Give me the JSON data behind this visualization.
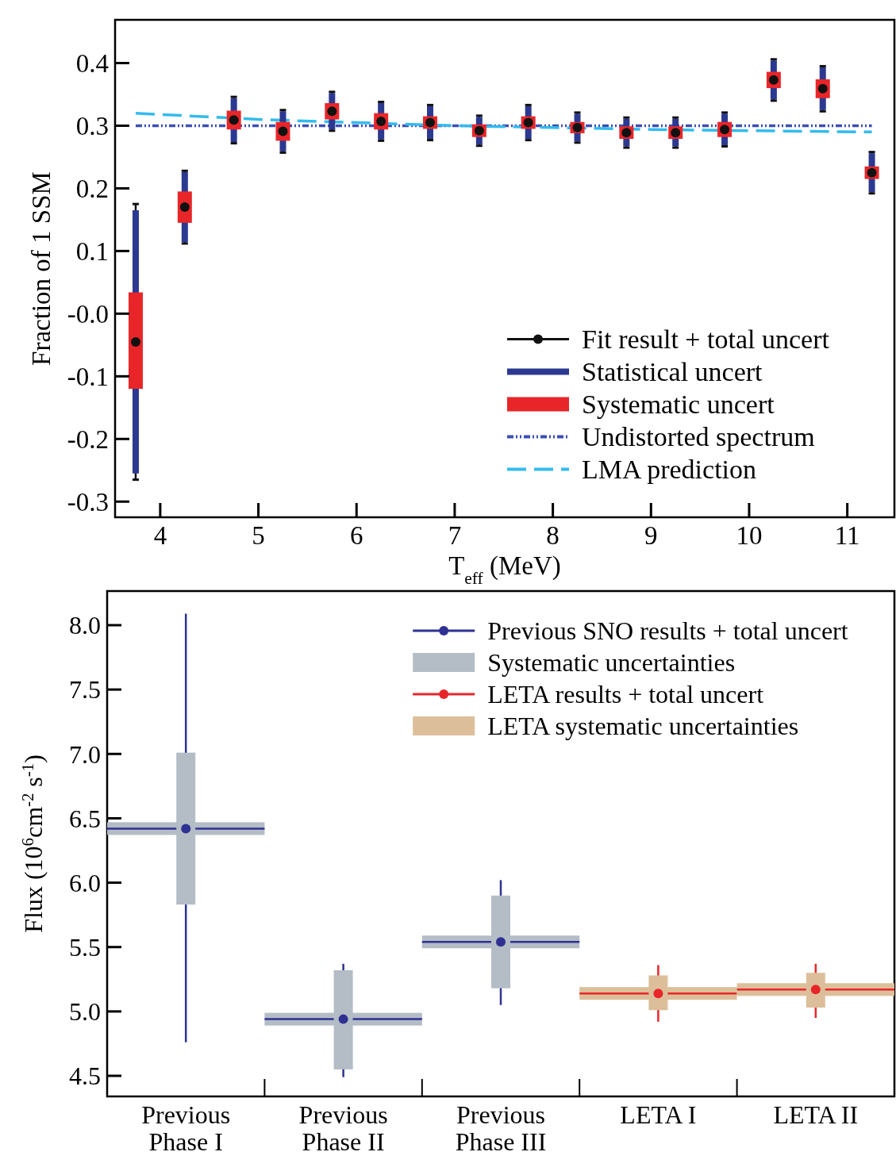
{
  "chart_data": [
    {
      "type": "scatter",
      "xlabel": "T$_{eff}$ (MeV)",
      "ylabel": "Fraction of 1 SSM",
      "xlim": [
        3.54,
        11.48
      ],
      "ylim": [
        -0.325,
        0.469
      ],
      "xticks": [
        4,
        5,
        6,
        7,
        8,
        9,
        10,
        11
      ],
      "yticks": [
        {
          "value": -0.3,
          "label": "-0.3"
        },
        {
          "value": -0.2,
          "label": "-0.2"
        },
        {
          "value": -0.1,
          "label": "-0.1"
        },
        {
          "value": 0,
          "label": "-0.0"
        },
        {
          "value": 0.1,
          "label": "0.1"
        },
        {
          "value": 0.2,
          "label": "0.2"
        },
        {
          "value": 0.3,
          "label": "0.3"
        },
        {
          "value": 0.4,
          "label": "0.4"
        }
      ],
      "legend": "bottom right",
      "x": [
        3.75,
        4.25,
        4.75,
        5.25,
        5.75,
        6.25,
        6.75,
        7.25,
        7.75,
        8.25,
        8.75,
        9.25,
        9.75,
        10.25,
        10.75,
        11.25
      ],
      "series": [
        {
          "name": "Fit result + total uncert",
          "marker": "circle",
          "color": "#111111",
          "values": [
            -0.045,
            0.17,
            0.309,
            0.291,
            0.323,
            0.307,
            0.305,
            0.292,
            0.305,
            0.297,
            0.289,
            0.289,
            0.294,
            0.373,
            0.359,
            0.225
          ],
          "errors": [
            [
              -0.265,
              0.175
            ],
            [
              0.112,
              0.228
            ],
            [
              0.272,
              0.346
            ],
            [
              0.257,
              0.325
            ],
            [
              0.292,
              0.354
            ],
            [
              0.276,
              0.338
            ],
            [
              0.277,
              0.333
            ],
            [
              0.268,
              0.316
            ],
            [
              0.277,
              0.333
            ],
            [
              0.273,
              0.321
            ],
            [
              0.265,
              0.313
            ],
            [
              0.265,
              0.313
            ],
            [
              0.267,
              0.321
            ],
            [
              0.34,
              0.406
            ],
            [
              0.323,
              0.395
            ],
            [
              0.192,
              0.258
            ]
          ]
        },
        {
          "name": "Statistical uncert",
          "type": "bar",
          "color": "#2b3990",
          "base": [
            -0.255,
            0.114,
            0.274,
            0.259,
            0.294,
            0.278,
            0.279,
            0.27,
            0.279,
            0.275,
            0.267,
            0.267,
            0.269,
            0.342,
            0.325,
            0.194
          ],
          "values": [
            0.42,
            0.112,
            0.07,
            0.064,
            0.058,
            0.058,
            0.052,
            0.044,
            0.052,
            0.044,
            0.044,
            0.044,
            0.05,
            0.062,
            0.068,
            0.062
          ]
        },
        {
          "name": "Systematic uncert",
          "type": "bar",
          "color": "#e8262a",
          "base": [
            -0.12,
            0.145,
            0.294,
            0.276,
            0.31,
            0.294,
            0.295,
            0.282,
            0.295,
            0.288,
            0.279,
            0.279,
            0.282,
            0.36,
            0.344,
            0.215
          ],
          "values": [
            0.154,
            0.05,
            0.03,
            0.03,
            0.026,
            0.026,
            0.02,
            0.02,
            0.02,
            0.018,
            0.02,
            0.02,
            0.024,
            0.026,
            0.03,
            0.02
          ]
        },
        {
          "name": "Undistorted spectrum",
          "type": "line",
          "line_style": "dotted",
          "color": "#3d4fb5",
          "x": [
            3.75,
            11.25
          ],
          "values": [
            0.3,
            0.3
          ]
        },
        {
          "name": "LMA prediction",
          "type": "line",
          "line_style": "dashed",
          "color": "#33bbee",
          "x": [
            3.75,
            5,
            6,
            7,
            8,
            9,
            10,
            11.25
          ],
          "values": [
            0.32,
            0.31,
            0.305,
            0.3,
            0.297,
            0.294,
            0.292,
            0.29
          ]
        }
      ]
    },
    {
      "type": "scatter",
      "ylabel": "Flux (10$^{6}$cm$^{-2}$ s$^{-1}$)",
      "categories": [
        "Previous\nPhase I",
        "Previous\nPhase II",
        "Previous\nPhase III",
        "LETA I",
        "LETA II"
      ],
      "ylim": [
        4.34,
        8.265
      ],
      "yticks": [
        4.5,
        {
          "value": 5,
          "label": "5.0"
        },
        5.5,
        {
          "value": 6,
          "label": "6.0"
        },
        6.5,
        {
          "value": 7,
          "label": "7.0"
        },
        7.5,
        {
          "value": 8,
          "label": "8.0"
        }
      ],
      "legend": "top right",
      "series": [
        {
          "name": "Previous SNO results + total uncert",
          "marker": "circle",
          "color": "#2e3192",
          "values": [
            6.42,
            4.94,
            5.54,
            null,
            null
          ],
          "errors": [
            [
              4.76,
              8.09
            ],
            [
              4.49,
              5.37
            ],
            [
              5.05,
              6.02
            ],
            null,
            null
          ]
        },
        {
          "name": "Systematic uncertainties",
          "type": "bar",
          "color": "#b4bcc6",
          "base": [
            5.83,
            4.55,
            5.18,
            null,
            null
          ],
          "values": [
            1.18,
            0.77,
            0.72,
            null,
            null
          ]
        },
        {
          "name": "LETA results + total uncert",
          "marker": "circle",
          "color": "#e8262a",
          "values": [
            null,
            null,
            null,
            5.14,
            5.17
          ],
          "errors": [
            null,
            null,
            null,
            [
              4.92,
              5.36
            ],
            [
              4.95,
              5.37
            ]
          ]
        },
        {
          "name": "LETA systematic uncertainties",
          "type": "bar",
          "color": "#dcbf9a",
          "base": [
            null,
            null,
            null,
            5.01,
            5.03
          ],
          "values": [
            null,
            null,
            null,
            0.27,
            0.27
          ]
        }
      ]
    }
  ]
}
